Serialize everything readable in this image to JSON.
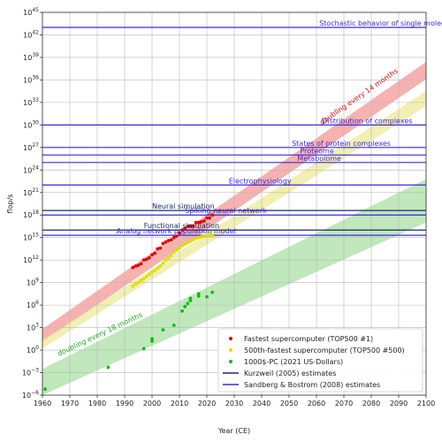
{
  "chart_data": {
    "type": "scatter",
    "xlabel": "Year (CE)",
    "ylabel": "flop/s",
    "xlim": [
      1960,
      2100
    ],
    "ylim_log10": [
      -6,
      45
    ],
    "y_scale": "log10",
    "grid": true,
    "x_ticks": [
      1960,
      1970,
      1980,
      1990,
      2000,
      2010,
      2020,
      2030,
      2040,
      2050,
      2060,
      2070,
      2080,
      2090,
      2100
    ],
    "y_tick_exponents": [
      -6,
      -3,
      0,
      3,
      6,
      9,
      12,
      15,
      18,
      21,
      24,
      27,
      30,
      33,
      36,
      39,
      42,
      45
    ],
    "legend_placement": "bottom-right",
    "bands": [
      {
        "name": "doubling every 14 months",
        "color": "#f4a3a3",
        "label_color": "#cc1111",
        "lower": [
          [
            1960,
            1.0
          ],
          [
            2100,
            36.1
          ]
        ],
        "upper": [
          [
            1960,
            2.8
          ],
          [
            2100,
            38.4
          ]
        ]
      },
      {
        "name": "",
        "color": "#f0eca6",
        "label_color": "#bbbb00",
        "lower": [
          [
            1960,
            0.2
          ],
          [
            2100,
            32.5
          ]
        ],
        "upper": [
          [
            1960,
            1.3
          ],
          [
            2100,
            34.5
          ]
        ]
      },
      {
        "name": "doubling every 18 months",
        "color": "#b6e3b1",
        "label_color": "#22aa22",
        "lower": [
          [
            1960,
            -6.0
          ],
          [
            2100,
            17.0
          ]
        ],
        "upper": [
          [
            1960,
            -2.5
          ],
          [
            2100,
            22.8
          ]
        ]
      }
    ],
    "levels": [
      {
        "name": "Stochastic behavior of single molecules",
        "log10": 43,
        "color": "#3a2ad6",
        "label_x": 2061
      },
      {
        "name": "Distribution of complexes",
        "log10": 30,
        "color": "#3a2ad6",
        "label_x": 2062
      },
      {
        "name": "States of protein complexes",
        "log10": 27,
        "color": "#3a2ad6",
        "label_x": 2051
      },
      {
        "name": "Proteome",
        "log10": 26,
        "color": "#3a2ad6",
        "label_x": 2054
      },
      {
        "name": "Metabolome",
        "log10": 25,
        "color": "#3a2ad6",
        "label_x": 2053
      },
      {
        "name": "Electrophysiology",
        "log10": 22,
        "color": "#3a2ad6",
        "label_x": 2028
      },
      {
        "name": "Neural simulation",
        "log10": 18.6,
        "color": "#1a2a6a",
        "label_x": 2000
      },
      {
        "name": "Spiking neural network",
        "log10": 18,
        "color": "#3a2ad6",
        "label_x": 2012
      },
      {
        "name": "Functional simulation",
        "log10": 16,
        "color": "#1a2a6a",
        "label_x": 1997
      },
      {
        "name": "Analog network population model",
        "log10": 15.3,
        "color": "#3a2ad6",
        "label_x": 1987
      }
    ],
    "series": [
      {
        "name": "Fastest supercomputer (TOP500 #1)",
        "color": "#e00000",
        "points": [
          [
            1993,
            11.0
          ],
          [
            1994,
            11.2
          ],
          [
            1995,
            11.3
          ],
          [
            1996,
            11.5
          ],
          [
            1997,
            12.0
          ],
          [
            1998,
            12.1
          ],
          [
            1999,
            12.3
          ],
          [
            2000,
            12.7
          ],
          [
            2001,
            12.9
          ],
          [
            2002,
            13.5
          ],
          [
            2003,
            13.6
          ],
          [
            2004,
            14.2
          ],
          [
            2005,
            14.4
          ],
          [
            2006,
            14.6
          ],
          [
            2007,
            14.7
          ],
          [
            2008,
            15.0
          ],
          [
            2009,
            15.2
          ],
          [
            2010,
            15.6
          ],
          [
            2011,
            16.0
          ],
          [
            2012,
            16.2
          ],
          [
            2013,
            16.5
          ],
          [
            2014,
            16.5
          ],
          [
            2015,
            16.5
          ],
          [
            2016,
            17.0
          ],
          [
            2017,
            17.0
          ],
          [
            2018,
            17.1
          ],
          [
            2019,
            17.2
          ],
          [
            2020,
            17.6
          ],
          [
            2021,
            17.6
          ],
          [
            2022,
            18.0
          ]
        ]
      },
      {
        "name": "500th-fastest supercomputer (TOP500 #500)",
        "color": "#dddd00",
        "points": [
          [
            1993,
            8.5
          ],
          [
            1994,
            8.8
          ],
          [
            1995,
            9.0
          ],
          [
            1996,
            9.3
          ],
          [
            1997,
            9.5
          ],
          [
            1998,
            9.8
          ],
          [
            1999,
            10.1
          ],
          [
            2000,
            10.4
          ],
          [
            2001,
            10.6
          ],
          [
            2002,
            10.9
          ],
          [
            2003,
            11.2
          ],
          [
            2004,
            11.6
          ],
          [
            2005,
            12.0
          ],
          [
            2006,
            12.3
          ],
          [
            2007,
            12.6
          ],
          [
            2008,
            13.0
          ],
          [
            2009,
            13.3
          ],
          [
            2010,
            13.6
          ],
          [
            2011,
            13.9
          ],
          [
            2012,
            14.1
          ],
          [
            2013,
            14.3
          ],
          [
            2014,
            14.5
          ],
          [
            2015,
            14.7
          ],
          [
            2016,
            14.9
          ],
          [
            2017,
            15.0
          ],
          [
            2018,
            15.1
          ],
          [
            2019,
            15.2
          ],
          [
            2020,
            15.2
          ],
          [
            2021,
            15.3
          ],
          [
            2022,
            15.3
          ]
        ]
      },
      {
        "name": "1000$-PC (2021 US-Dollars)",
        "color": "#11bb11",
        "points": [
          [
            1961,
            -5.2
          ],
          [
            1984,
            -2.3
          ],
          [
            1997,
            0.2
          ],
          [
            2000,
            1.2
          ],
          [
            2000,
            1.5
          ],
          [
            2004,
            2.7
          ],
          [
            2008,
            3.3
          ],
          [
            2011,
            5.2
          ],
          [
            2012,
            5.8
          ],
          [
            2013,
            6.2
          ],
          [
            2014,
            6.6
          ],
          [
            2014,
            6.9
          ],
          [
            2017,
            7.2
          ],
          [
            2017,
            7.5
          ],
          [
            2020,
            7.1
          ],
          [
            2022,
            7.7
          ]
        ]
      }
    ],
    "legend": [
      {
        "label": "Fastest supercomputer (TOP500 #1)",
        "kind": "dot",
        "color": "#e00000"
      },
      {
        "label": "500th-fastest supercomputer (TOP500 #500)",
        "kind": "dot",
        "color": "#dddd00"
      },
      {
        "label": "1000$-PC (2021 US-Dollars)",
        "kind": "dot",
        "color": "#11bb11"
      },
      {
        "label": "Kurzweil (2005) estimates",
        "kind": "line",
        "color": "#1a2a6a"
      },
      {
        "label": "Sandberg & Bostrom (2008) estimates",
        "kind": "line",
        "color": "#3a2ad6"
      }
    ]
  }
}
